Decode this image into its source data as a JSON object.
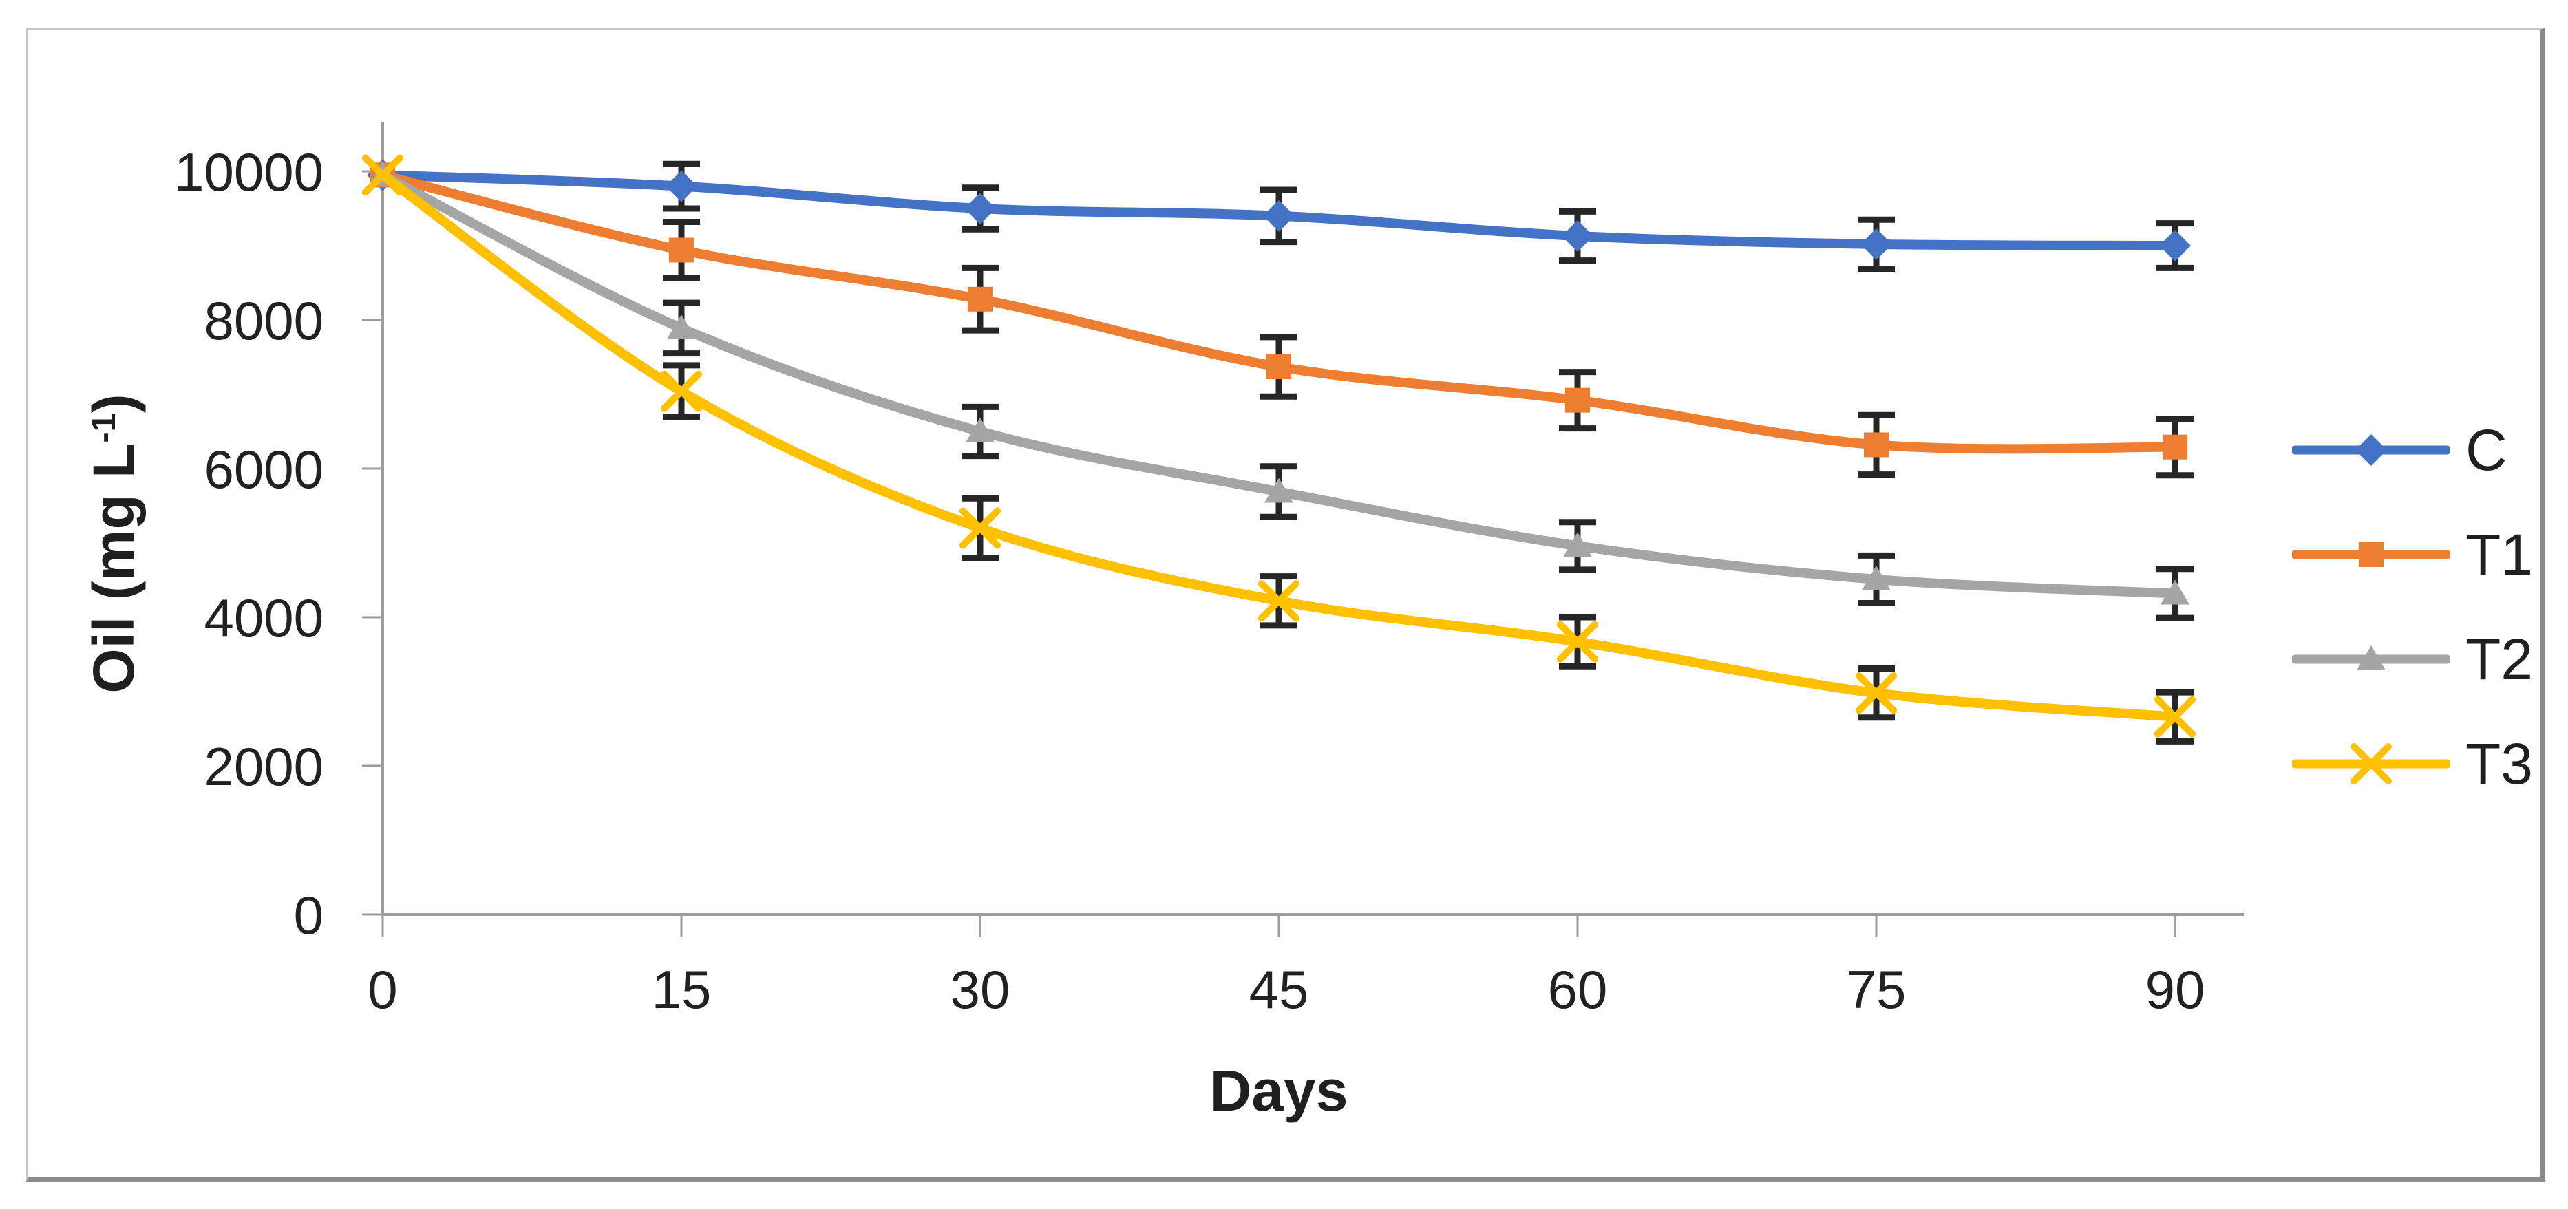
{
  "chart_data": {
    "type": "line",
    "x": [
      0,
      15,
      30,
      45,
      60,
      75,
      90
    ],
    "xlabel": "Days",
    "ylabel": "Oil (mg L-1)",
    "ylabel_parts": {
      "prefix": "Oil (mg L",
      "superscript": "-1",
      "suffix": ")"
    },
    "xlim": [
      0,
      90
    ],
    "ylim": [
      0,
      10000
    ],
    "yticks": [
      0,
      2000,
      4000,
      6000,
      8000,
      10000
    ],
    "xticks": [
      0,
      15,
      30,
      45,
      60,
      75,
      90
    ],
    "grid": false,
    "legend_position": "right",
    "error_bars": true,
    "series": [
      {
        "name": "C",
        "marker": "diamond",
        "color": "#4472C4",
        "values": [
          9950,
          9800,
          9500,
          9400,
          9130,
          9020,
          9000
        ],
        "errors": [
          0,
          300,
          280,
          350,
          330,
          330,
          300
        ]
      },
      {
        "name": "T1",
        "marker": "square",
        "color": "#ED7D31",
        "values": [
          9950,
          8940,
          8280,
          7370,
          6920,
          6320,
          6290
        ],
        "errors": [
          0,
          380,
          420,
          400,
          380,
          400,
          380
        ]
      },
      {
        "name": "T2",
        "marker": "triangle",
        "color": "#A5A5A5",
        "values": [
          9950,
          7890,
          6500,
          5690,
          4960,
          4510,
          4320
        ],
        "errors": [
          0,
          340,
          330,
          340,
          320,
          320,
          330
        ]
      },
      {
        "name": "T3",
        "marker": "x",
        "color": "#FFC000",
        "values": [
          9950,
          7040,
          5200,
          4220,
          3670,
          2980,
          2660
        ],
        "errors": [
          0,
          350,
          400,
          330,
          330,
          330,
          330
        ]
      }
    ],
    "colors": {
      "axis": "#9d9d9d",
      "error_bar": "#262626",
      "text": "#212121",
      "border_light": "#c6c6c6",
      "border_dark": "#8a8a8a"
    }
  }
}
